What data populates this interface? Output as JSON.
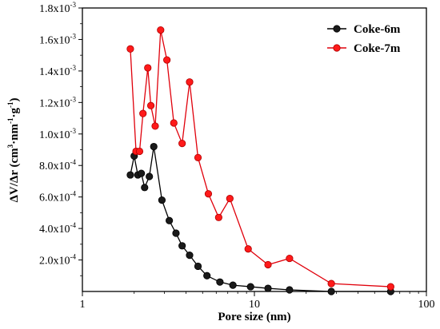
{
  "colors": {
    "coke6m": "#000000",
    "coke7m": "#e0000b",
    "coke6m_marker": "#1a1a1a",
    "coke7m_marker": "#ff1a1a"
  },
  "chart_data": {
    "type": "line",
    "xlabel": "Pore size (nm)",
    "ylabel": {
      "prefix": "ΔV/Δr (cm",
      "sup1": "3",
      "mid1": "·nm",
      "sup2": "-1",
      "mid2": "·g",
      "sup3": "-1",
      "suffix": ")"
    },
    "x_scale": "log",
    "xlim": [
      1,
      100
    ],
    "ylim": [
      0,
      0.0018
    ],
    "x_ticks": [
      {
        "value": 1,
        "label": "1"
      },
      {
        "value": 10,
        "label": "10"
      },
      {
        "value": 100,
        "label": "100"
      }
    ],
    "y_ticks": [
      {
        "value": 0.0002,
        "base": "2.0x10",
        "exp": "-4"
      },
      {
        "value": 0.0004,
        "base": "4.0x10",
        "exp": "-4"
      },
      {
        "value": 0.0006,
        "base": "6.0x10",
        "exp": "-4"
      },
      {
        "value": 0.0008,
        "base": "8.0x10",
        "exp": "-4"
      },
      {
        "value": 0.001,
        "base": "1.0x10",
        "exp": "-3"
      },
      {
        "value": 0.0012,
        "base": "1.2x10",
        "exp": "-3"
      },
      {
        "value": 0.0014,
        "base": "1.4x10",
        "exp": "-3"
      },
      {
        "value": 0.0016,
        "base": "1.6x10",
        "exp": "-3"
      },
      {
        "value": 0.0018,
        "base": "1.8x10",
        "exp": "-3"
      }
    ],
    "grid": false,
    "legend_position": "top-right",
    "series": [
      {
        "name": "Coke-6m",
        "color_key": "coke6m",
        "points": [
          [
            1.9,
            0.00074
          ],
          [
            2.0,
            0.00086
          ],
          [
            2.1,
            0.00074
          ],
          [
            2.2,
            0.00075
          ],
          [
            2.3,
            0.00066
          ],
          [
            2.45,
            0.00073
          ],
          [
            2.6,
            0.00092
          ],
          [
            2.9,
            0.00058
          ],
          [
            3.2,
            0.00045
          ],
          [
            3.5,
            0.00037
          ],
          [
            3.8,
            0.00029
          ],
          [
            4.2,
            0.00023
          ],
          [
            4.7,
            0.00016
          ],
          [
            5.3,
            0.0001
          ],
          [
            6.3,
            6e-05
          ],
          [
            7.5,
            4e-05
          ],
          [
            9.5,
            3e-05
          ],
          [
            12.0,
            2e-05
          ],
          [
            16.0,
            1e-05
          ],
          [
            28.0,
            0.0
          ],
          [
            62.0,
            0.0
          ]
        ]
      },
      {
        "name": "Coke-7m",
        "color_key": "coke7m",
        "points": [
          [
            1.9,
            0.00154
          ],
          [
            2.05,
            0.00089
          ],
          [
            2.15,
            0.00089
          ],
          [
            2.25,
            0.00113
          ],
          [
            2.4,
            0.00142
          ],
          [
            2.5,
            0.00118
          ],
          [
            2.65,
            0.00105
          ],
          [
            2.85,
            0.00166
          ],
          [
            3.1,
            0.00147
          ],
          [
            3.4,
            0.00107
          ],
          [
            3.8,
            0.00094
          ],
          [
            4.2,
            0.00133
          ],
          [
            4.7,
            0.00085
          ],
          [
            5.4,
            0.00062
          ],
          [
            6.2,
            0.00047
          ],
          [
            7.2,
            0.00059
          ],
          [
            9.2,
            0.00027
          ],
          [
            12.0,
            0.00017
          ],
          [
            16.0,
            0.00021
          ],
          [
            28.0,
            5e-05
          ],
          [
            62.0,
            3e-05
          ]
        ]
      }
    ]
  }
}
